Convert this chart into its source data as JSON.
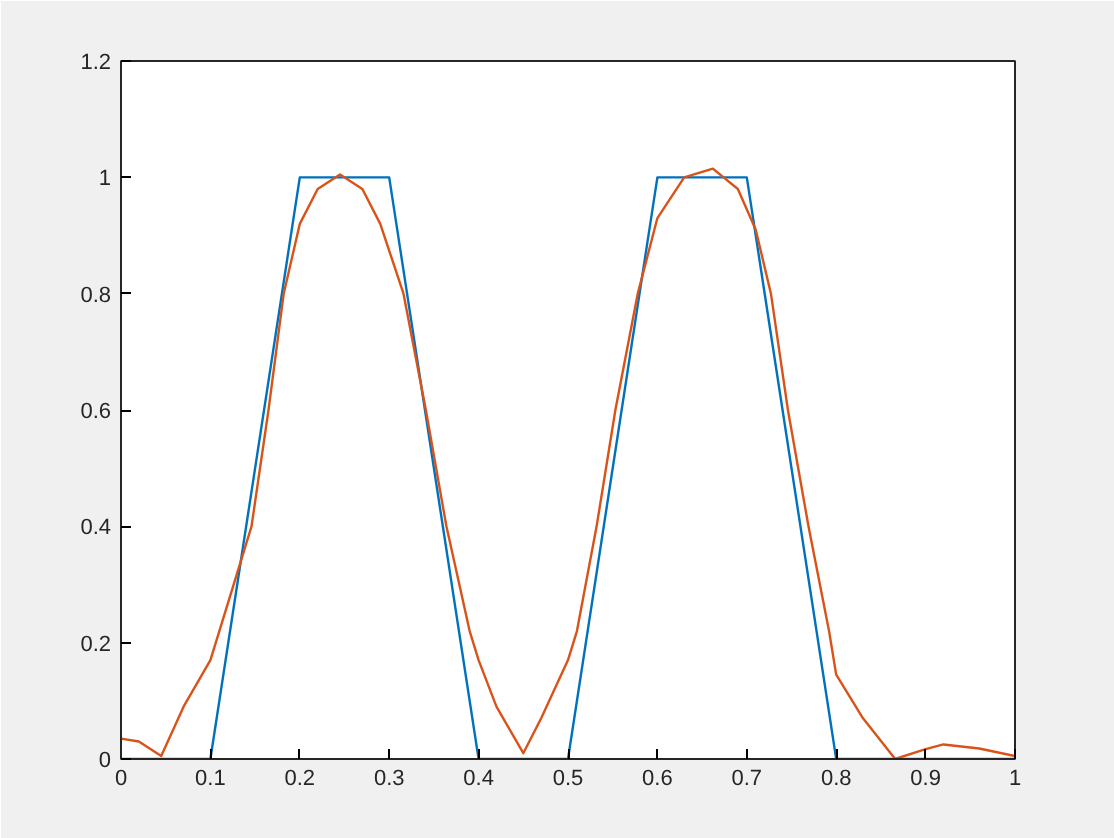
{
  "chart_data": {
    "type": "line",
    "xlim": [
      0,
      1
    ],
    "ylim": [
      0,
      1.2
    ],
    "xticks": [
      0,
      0.1,
      0.2,
      0.3,
      0.4,
      0.5,
      0.6,
      0.7,
      0.8,
      0.9,
      1
    ],
    "yticks": [
      0,
      0.2,
      0.4,
      0.6,
      0.8,
      1,
      1.2
    ],
    "grid": false,
    "series": [
      {
        "color": "#0072bd",
        "x": [
          0,
          0.1,
          0.2,
          0.3,
          0.4,
          0.5,
          0.6,
          0.7,
          0.8,
          1
        ],
        "values": [
          0,
          0,
          1,
          1,
          0,
          0,
          1,
          1,
          0,
          0
        ]
      },
      {
        "color": "#d95319",
        "x": [
          0,
          0.02,
          0.045,
          0.07,
          0.1,
          0.11,
          0.146,
          0.165,
          0.182,
          0.2,
          0.22,
          0.245,
          0.27,
          0.29,
          0.316,
          0.341,
          0.364,
          0.39,
          0.4,
          0.42,
          0.45,
          0.47,
          0.5,
          0.51,
          0.532,
          0.553,
          0.578,
          0.6,
          0.63,
          0.662,
          0.69,
          0.71,
          0.727,
          0.746,
          0.769,
          0.792,
          0.8,
          0.83,
          0.866,
          0.9,
          0.92,
          0.96,
          1
        ],
        "values": [
          0.035,
          0.03,
          0.005,
          0.09,
          0.17,
          0.22,
          0.4,
          0.6,
          0.8,
          0.92,
          0.98,
          1.005,
          0.98,
          0.92,
          0.8,
          0.6,
          0.4,
          0.22,
          0.17,
          0.09,
          0.01,
          0.07,
          0.17,
          0.22,
          0.4,
          0.6,
          0.8,
          0.93,
          1.0,
          1.015,
          0.98,
          0.91,
          0.8,
          0.6,
          0.4,
          0.22,
          0.145,
          0.07,
          0,
          0.017,
          0.025,
          0.018,
          0.005
        ]
      }
    ]
  }
}
